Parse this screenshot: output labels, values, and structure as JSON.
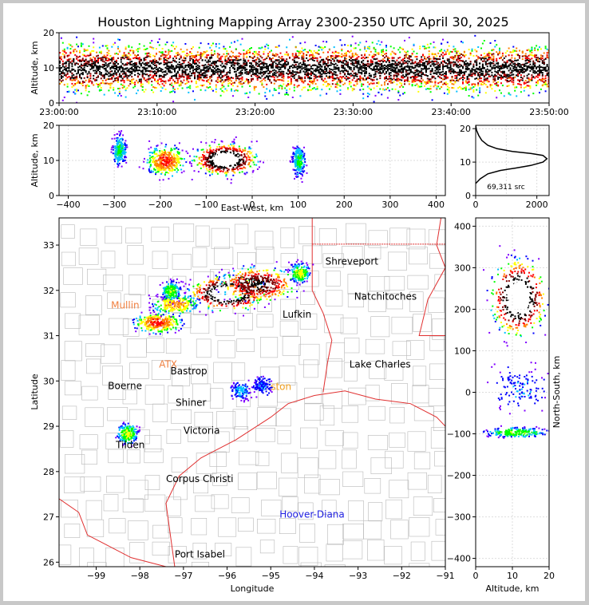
{
  "chart_data": [
    {
      "type": "heatmap",
      "panel": "altitude-time",
      "title": "Houston Lightning Mapping Array 2300-2350 UTC April 30, 2025",
      "ylabel": "Altitude, km",
      "ylim": [
        0,
        20
      ],
      "yticks": [
        "0",
        "10",
        "20"
      ],
      "xticks": [
        "23:00:00",
        "23:10:00",
        "23:20:00",
        "23:30:00",
        "23:40:00",
        "23:50:00"
      ],
      "xlim_minutes": [
        0,
        50
      ],
      "density_band": {
        "center_km": 10,
        "core_half_width_km": 3,
        "outer_half_width_km": 9
      }
    },
    {
      "type": "heatmap",
      "panel": "east-west-altitude",
      "xlabel": "East-West, km",
      "ylabel": "Altitude, km",
      "xlim": [
        -420,
        420
      ],
      "ylim": [
        0,
        20
      ],
      "xticks": [
        "−400",
        "−300",
        "−200",
        "−100",
        "0",
        "100",
        "200",
        "300",
        "400"
      ],
      "yticks": [
        "0",
        "10",
        "20"
      ],
      "clusters": [
        {
          "x_km": -290,
          "alt_km": 13,
          "intensity": 0.3
        },
        {
          "x_km": -190,
          "alt_km": 10,
          "intensity": 0.6
        },
        {
          "x_km": -60,
          "alt_km": 10.5,
          "intensity": 1.0
        },
        {
          "x_km": 100,
          "alt_km": 10,
          "intensity": 0.3
        }
      ]
    },
    {
      "type": "line",
      "panel": "altitude-histogram",
      "xlim": [
        0,
        2400
      ],
      "ylim": [
        0,
        21
      ],
      "xticks": [
        "0",
        "2000"
      ],
      "yticks": [
        "0",
        "10",
        "20"
      ],
      "annotation": "69,311 src",
      "points": [
        [
          0,
          3.6
        ],
        [
          150,
          5
        ],
        [
          400,
          6.5
        ],
        [
          800,
          7.5
        ],
        [
          1300,
          8.2
        ],
        [
          1800,
          9.0
        ],
        [
          2200,
          10.0
        ],
        [
          2330,
          11.0
        ],
        [
          2200,
          12.0
        ],
        [
          1800,
          12.6
        ],
        [
          1200,
          13.2
        ],
        [
          700,
          14.0
        ],
        [
          400,
          15.0
        ],
        [
          200,
          16.5
        ],
        [
          100,
          18.0
        ],
        [
          30,
          19.5
        ],
        [
          0,
          21
        ]
      ]
    },
    {
      "type": "scatter",
      "panel": "plan-view-map",
      "xlabel": "Longitude",
      "ylabel": "Latitude",
      "xlim": [
        -99.85,
        -91
      ],
      "ylim": [
        25.9,
        33.6
      ],
      "xticks": [
        "−99",
        "−98",
        "−97",
        "−96",
        "−95",
        "−94",
        "−93",
        "−92",
        "−91"
      ],
      "yticks": [
        "26",
        "27",
        "28",
        "29",
        "30",
        "31",
        "32",
        "33"
      ],
      "clusters": [
        {
          "lon": -96.0,
          "lat": 31.95,
          "intensity": 1.0
        },
        {
          "lon": -95.3,
          "lat": 32.15,
          "intensity": 0.8
        },
        {
          "lon": -97.6,
          "lat": 31.3,
          "intensity": 0.6
        },
        {
          "lon": -97.2,
          "lat": 31.7,
          "intensity": 0.5
        },
        {
          "lon": -94.35,
          "lat": 32.4,
          "intensity": 0.4
        },
        {
          "lon": -97.3,
          "lat": 32.0,
          "intensity": 0.35
        },
        {
          "lon": -98.3,
          "lat": 28.85,
          "intensity": 0.4
        },
        {
          "lon": -95.7,
          "lat": 29.8,
          "intensity": 0.2
        },
        {
          "lon": -95.2,
          "lat": 29.9,
          "intensity": 0.15
        }
      ]
    },
    {
      "type": "heatmap",
      "panel": "altitude-north-south",
      "xlabel": "Altitude, km",
      "ylabel": "North-South, km",
      "xlim": [
        0,
        20
      ],
      "ylim": [
        -420,
        420
      ],
      "xticks": [
        "0",
        "10",
        "20"
      ],
      "yticks": [
        "−400",
        "−300",
        "−200",
        "−100",
        "0",
        "100",
        "200",
        "300",
        "400"
      ],
      "clusters": [
        {
          "alt_km": 11.5,
          "y_km": 230,
          "intensity": 1.0
        },
        {
          "alt_km": 11,
          "y_km": -95,
          "intensity": 0.35
        },
        {
          "alt_km": 12,
          "y_km": 10,
          "intensity": 0.15
        }
      ]
    }
  ],
  "cities": [
    {
      "name": "Shreveport",
      "lon": -93.75,
      "lat": 32.57,
      "color": "#000000"
    },
    {
      "name": "Natchitoches",
      "lon": -93.09,
      "lat": 31.79,
      "color": "#000000"
    },
    {
      "name": "Lufkin",
      "lon": -94.73,
      "lat": 31.4,
      "color": "#000000"
    },
    {
      "name": "Lake Charles",
      "lon": -93.2,
      "lat": 30.3,
      "color": "#000000"
    },
    {
      "name": "Mullin",
      "lon": -98.66,
      "lat": 31.6,
      "color": "#f08040"
    },
    {
      "name": "ATX",
      "lon": -97.56,
      "lat": 30.3,
      "color": "#f08040"
    },
    {
      "name": "Bastrop",
      "lon": -97.3,
      "lat": 30.15,
      "color": "#000000"
    },
    {
      "name": "Boerne",
      "lon": -98.73,
      "lat": 29.82,
      "color": "#000000"
    },
    {
      "name": "Shiner",
      "lon": -97.18,
      "lat": 29.45,
      "color": "#000000"
    },
    {
      "name": "Victoria",
      "lon": -97.0,
      "lat": 28.83,
      "color": "#000000"
    },
    {
      "name": "Tilden",
      "lon": -98.55,
      "lat": 28.52,
      "color": "#000000"
    },
    {
      "name": "Corpus Christi",
      "lon": -97.4,
      "lat": 27.77,
      "color": "#000000"
    },
    {
      "name": "Port Isabel",
      "lon": -97.2,
      "lat": 26.1,
      "color": "#000000"
    },
    {
      "name": "Hoover-Diana",
      "lon": -94.8,
      "lat": 26.98,
      "color": "#2020e0"
    },
    {
      "name": "Cor",
      "lon": -95.75,
      "lat": 32.15,
      "color": "#000000"
    },
    {
      "name": "ston",
      "lon": -95.0,
      "lat": 29.8,
      "color": "#f0a020"
    }
  ],
  "colors": {
    "density_ramp": [
      "#8000ff",
      "#0000ff",
      "#00c0ff",
      "#00ff00",
      "#ffff00",
      "#ff8000",
      "#ff0000",
      "#800000",
      "#000000",
      "#ffffff"
    ],
    "state_border": "#e03030",
    "county_border": "#b8b8b8"
  }
}
